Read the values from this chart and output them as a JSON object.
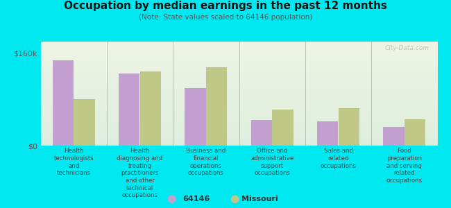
{
  "title": "Occupation by median earnings in the past 12 months",
  "subtitle": "(Note: State values scaled to 64146 population)",
  "background_outer": "#00e8f0",
  "background_inner_top": "#eef4e4",
  "background_inner_bottom": "#deeede",
  "bar_color_64146": "#c4a0d0",
  "bar_color_missouri": "#c0c888",
  "ytick_label": "$160k",
  "ytick_value": 160000,
  "ymax": 180000,
  "categories": [
    "Health\ntechnologists\nand\ntechnicians",
    "Health\ndiagnosing and\ntreating\npractitioners\nand other\ntechnical\noccupations",
    "Business and\nfinancial\noperations\noccupations",
    "Office and\nadministrative\nsupport\noccupations",
    "Sales and\nrelated\noccupations",
    "Food\npreparation\nand serving\nrelated\noccupations"
  ],
  "values_64146": [
    148000,
    125000,
    100000,
    45000,
    42000,
    32000
  ],
  "values_missouri": [
    80000,
    128000,
    135000,
    62000,
    65000,
    46000
  ],
  "legend_64146": "64146",
  "legend_missouri": "Missouri",
  "watermark": "City-Data.com"
}
